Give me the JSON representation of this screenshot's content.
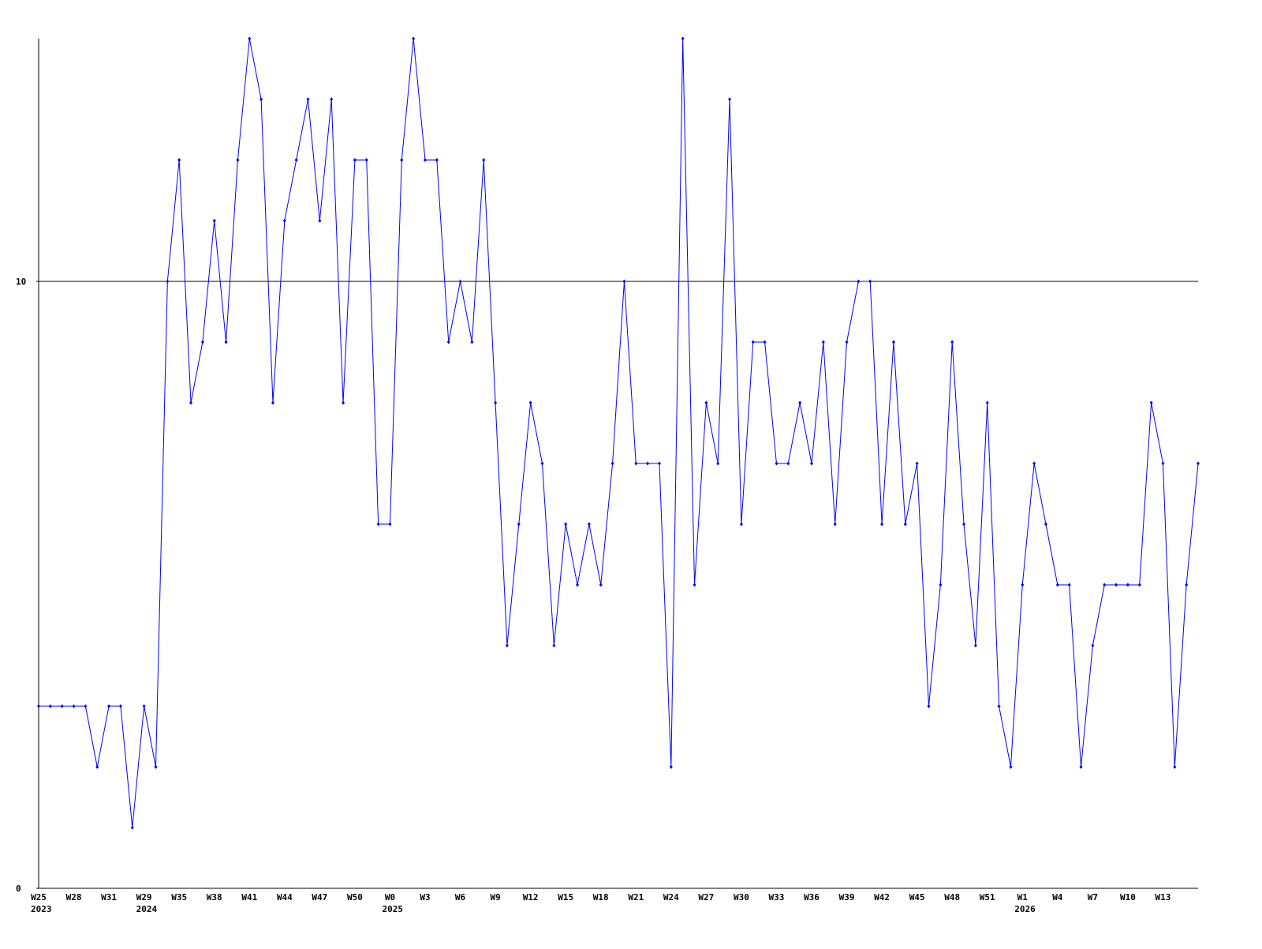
{
  "chart_data": {
    "type": "line",
    "categories": [
      "W25",
      null,
      null,
      "W28",
      null,
      null,
      "W31",
      null,
      null,
      "W29",
      null,
      null,
      "W35",
      null,
      null,
      "W38",
      null,
      null,
      "W41",
      null,
      null,
      "W44",
      null,
      null,
      "W47",
      null,
      null,
      "W50",
      null,
      null,
      "W0",
      null,
      null,
      "W3",
      null,
      null,
      "W6",
      null,
      null,
      "W9",
      null,
      null,
      "W12",
      null,
      null,
      "W15",
      null,
      null,
      "W18",
      null,
      null,
      "W21",
      null,
      null,
      "W24",
      null,
      null,
      "W27",
      null,
      null,
      "W30",
      null,
      null,
      "W33",
      null,
      null,
      "W36",
      null,
      null,
      "W39",
      null,
      null,
      "W42",
      null,
      null,
      "W45",
      null,
      null,
      "W48",
      null,
      null,
      "W51",
      null,
      null,
      "W1",
      null,
      null,
      "W4",
      null,
      null,
      "W7",
      null,
      null,
      "W10",
      null,
      null,
      "W13",
      null,
      null,
      null
    ],
    "years": [
      "2023",
      null,
      null,
      null,
      null,
      null,
      null,
      null,
      null,
      "2024",
      null,
      null,
      null,
      null,
      null,
      null,
      null,
      null,
      null,
      null,
      null,
      null,
      null,
      null,
      null,
      null,
      null,
      null,
      null,
      null,
      "2025",
      null,
      null,
      null,
      null,
      null,
      null,
      null,
      null,
      null,
      null,
      null,
      null,
      null,
      null,
      null,
      null,
      null,
      null,
      null,
      null,
      null,
      null,
      null,
      null,
      null,
      null,
      null,
      null,
      null,
      null,
      null,
      null,
      null,
      null,
      null,
      null,
      null,
      null,
      null,
      null,
      null,
      null,
      null,
      null,
      null,
      null,
      null,
      null,
      null,
      null,
      null,
      null,
      null,
      "2026",
      null,
      null,
      null,
      null,
      null,
      null,
      null,
      null,
      null,
      null,
      null,
      null,
      null,
      null,
      null
    ],
    "series": [
      {
        "color": "#0000ff",
        "values": [
          3,
          3,
          3,
          3,
          3,
          2,
          3,
          3,
          1,
          3,
          2,
          10,
          12,
          8,
          9,
          11,
          9,
          12,
          14,
          13,
          8,
          11,
          12,
          13,
          11,
          13,
          8,
          12,
          12,
          6,
          6,
          12,
          14,
          12,
          12,
          9,
          10,
          9,
          12,
          8,
          4,
          6,
          8,
          7,
          4,
          6,
          5,
          6,
          5,
          7,
          10,
          7,
          7,
          7,
          2,
          14,
          5,
          8,
          7,
          13,
          6,
          9,
          9,
          7,
          7,
          8,
          7,
          9,
          6,
          9,
          10,
          10,
          6,
          9,
          6,
          7,
          3,
          5,
          9,
          6,
          4,
          8,
          3,
          2,
          5,
          7,
          6,
          5,
          5,
          2,
          4,
          5,
          5,
          5,
          5,
          8,
          7,
          2,
          5,
          7
        ]
      }
    ],
    "ylim": [
      0,
      14
    ],
    "yticks": [
      0,
      10
    ],
    "grid_ticks": [
      10
    ]
  }
}
